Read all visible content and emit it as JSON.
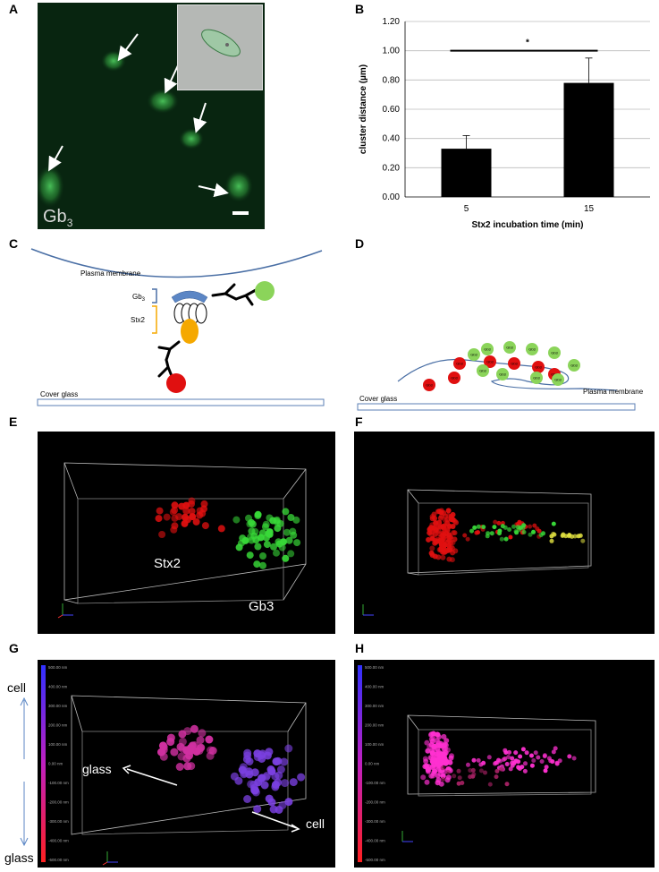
{
  "panel_labels": {
    "a": "A",
    "b": "B",
    "c": "C",
    "d": "D",
    "e": "E",
    "f": "F",
    "g": "G",
    "h": "H"
  },
  "panel_a": {
    "stain_main": "Gb",
    "stain_sub": "3"
  },
  "chart_data": {
    "type": "bar",
    "categories": [
      "5",
      "15"
    ],
    "values": [
      0.33,
      0.78
    ],
    "errors": [
      0.09,
      0.17
    ],
    "xlabel": "Stx2 incubation time (min)",
    "ylabel": "cluster distance (µm)",
    "ylim": [
      0,
      1.2
    ],
    "yticks": [
      "0.00",
      "0.20",
      "0.40",
      "0.60",
      "0.80",
      "1.00",
      "1.20"
    ],
    "significance": "*",
    "grid": true
  },
  "panel_c": {
    "plasma_membrane": "Plasma membrane",
    "gb3_main": "Gb",
    "gb3_sub": "3",
    "stx2": "Stx2",
    "cover_glass": "Cover glass"
  },
  "panel_d": {
    "cover_glass": "Cover glass",
    "plasma_membrane": "Plasma membrane",
    "bead_main": "Gb",
    "bead_sub": "3"
  },
  "panel_e": {
    "stx2": "Stx2",
    "gb3": "Gb3"
  },
  "panel_g": {
    "cell_top": "cell",
    "glass_bottom": "glass",
    "glass_arrow": "glass",
    "cell_arrow": "cell",
    "scale_ticks": [
      "500.00 nm",
      "400.00 nm",
      "300.00 nm",
      "200.00 nm",
      "100.00 nm",
      "0.00 nm",
      "-100.00 nm",
      "-200.00 nm",
      "-300.00 nm",
      "-400.00 nm",
      "-500.00 nm"
    ]
  },
  "panel_h": {
    "scale_ticks": [
      "500.00 nm",
      "400.00 nm",
      "300.00 nm",
      "200.00 nm",
      "100.00 nm",
      "0.00 nm",
      "-100.00 nm",
      "-200.00 nm",
      "-300.00 nm",
      "-400.00 nm",
      "-500.00 nm"
    ]
  },
  "colors": {
    "stx2": "#e01010",
    "gb3": "#38d838",
    "membrane": "#4a6fa5",
    "glass": "#5b7fb5",
    "stx2_body": "#f5a800",
    "gb3_body": "#5b86c5",
    "bead_green": "#8bd45a",
    "scale_top": "#3030ff",
    "scale_bottom": "#ff2020",
    "pink": "#ff30d0"
  }
}
